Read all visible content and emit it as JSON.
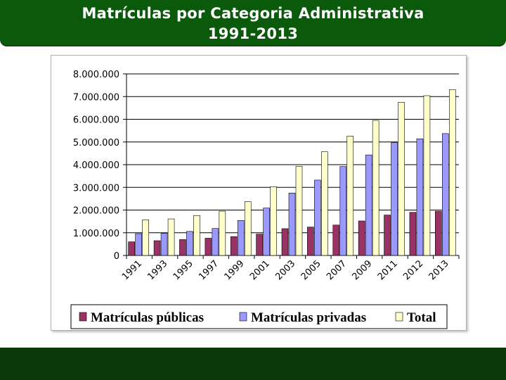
{
  "page": {
    "title_line1": "Matrículas por Categoria Administrativa",
    "title_line2": "1991-2013"
  },
  "colors": {
    "title_bar": "#0b5a0b",
    "bottom_bar": "#0a3a0a",
    "public": "#993366",
    "private": "#9999ff",
    "total": "#ffffcc"
  },
  "chart_data": {
    "type": "bar",
    "categories": [
      "1991",
      "1993",
      "1995",
      "1997",
      "1999",
      "2001",
      "2003",
      "2005",
      "2007",
      "2009",
      "2011",
      "2012",
      "2013"
    ],
    "series": [
      {
        "name": "Matrículas públicas",
        "values": [
          600000,
          650000,
          700000,
          760000,
          830000,
          940000,
          1180000,
          1250000,
          1340000,
          1520000,
          1780000,
          1900000,
          1950000
        ]
      },
      {
        "name": "Matrículas privadas",
        "values": [
          960000,
          970000,
          1060000,
          1190000,
          1540000,
          2090000,
          2750000,
          3320000,
          3920000,
          4430000,
          4970000,
          5140000,
          5370000
        ]
      },
      {
        "name": "Total",
        "values": [
          1570000,
          1610000,
          1760000,
          1950000,
          2370000,
          3030000,
          3930000,
          4570000,
          5260000,
          5950000,
          6750000,
          7040000,
          7310000
        ]
      }
    ],
    "ylim": [
      0,
      8000000
    ],
    "yticks": [
      0,
      1000000,
      2000000,
      3000000,
      4000000,
      5000000,
      6000000,
      7000000,
      8000000
    ],
    "ytick_labels": [
      "0",
      "1.000.000",
      "2.000.000",
      "3.000.000",
      "4.000.000",
      "5.000.000",
      "6.000.000",
      "7.000.000",
      "8.000.000"
    ],
    "grid": true,
    "legend_position": "bottom"
  }
}
